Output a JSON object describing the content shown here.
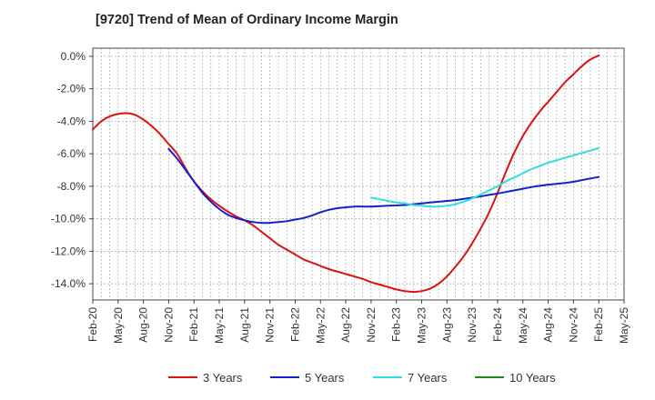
{
  "chart_data": {
    "type": "line",
    "title": "[9720]  Trend of Mean of Ordinary Income Margin",
    "xlabel": "",
    "ylabel": "",
    "ylim": [
      -15.0,
      0.5
    ],
    "y_ticks": [
      0.0,
      -2.0,
      -4.0,
      -6.0,
      -8.0,
      -10.0,
      -12.0,
      -14.0
    ],
    "y_tick_labels": [
      "0.0%",
      "-2.0%",
      "-4.0%",
      "-6.0%",
      "-8.0%",
      "-10.0%",
      "-12.0%",
      "-14.0%"
    ],
    "x_tick_labels": [
      "Feb-20",
      "May-20",
      "Aug-20",
      "Nov-20",
      "Feb-21",
      "May-21",
      "Aug-21",
      "Nov-21",
      "Feb-22",
      "May-22",
      "Aug-22",
      "Nov-22",
      "Feb-23",
      "May-23",
      "Aug-23",
      "Nov-23",
      "Feb-24",
      "May-24",
      "Aug-24",
      "Nov-24",
      "Feb-25",
      "May-25"
    ],
    "grid": true,
    "legend_position": "bottom",
    "series": [
      {
        "name": "3 Years",
        "color": "#dd1111",
        "x": [
          "Feb-20",
          "Mar-20",
          "Apr-20",
          "May-20",
          "Jun-20",
          "Jul-20",
          "Aug-20",
          "Sep-20",
          "Oct-20",
          "Nov-20",
          "Dec-20",
          "Jan-21",
          "Feb-21",
          "Mar-21",
          "Apr-21",
          "May-21",
          "Jun-21",
          "Jul-21",
          "Aug-21",
          "Sep-21",
          "Oct-21",
          "Nov-21",
          "Dec-21",
          "Jan-22",
          "Feb-22",
          "Mar-22",
          "Apr-22",
          "May-22",
          "Jun-22",
          "Jul-22",
          "Aug-22",
          "Sep-22",
          "Oct-22",
          "Nov-22",
          "Dec-22",
          "Jan-23",
          "Feb-23",
          "Mar-23",
          "Apr-23",
          "May-23",
          "Jun-23",
          "Jul-23",
          "Aug-23",
          "Sep-23",
          "Oct-23",
          "Nov-23",
          "Dec-23",
          "Jan-24",
          "Feb-24",
          "Mar-24",
          "Apr-24",
          "May-24",
          "Jun-24",
          "Jul-24",
          "Aug-24",
          "Sep-24",
          "Oct-24",
          "Nov-24",
          "Dec-24",
          "Jan-25",
          "Feb-25"
        ],
        "values": [
          -4.5,
          -4.0,
          -3.7,
          -3.55,
          -3.5,
          -3.6,
          -3.9,
          -4.3,
          -4.8,
          -5.4,
          -6.0,
          -6.9,
          -7.7,
          -8.3,
          -8.8,
          -9.2,
          -9.55,
          -9.85,
          -10.1,
          -10.4,
          -10.8,
          -11.2,
          -11.6,
          -11.9,
          -12.2,
          -12.5,
          -12.7,
          -12.9,
          -13.1,
          -13.25,
          -13.4,
          -13.55,
          -13.7,
          -13.9,
          -14.05,
          -14.2,
          -14.35,
          -14.45,
          -14.5,
          -14.45,
          -14.3,
          -14.0,
          -13.55,
          -12.95,
          -12.3,
          -11.5,
          -10.6,
          -9.6,
          -8.4,
          -7.1,
          -5.9,
          -4.9,
          -4.1,
          -3.4,
          -2.8,
          -2.2,
          -1.6,
          -1.1,
          -0.6,
          -0.2,
          0.05
        ]
      },
      {
        "name": "5 Years",
        "color": "#1122cc",
        "x": [
          "Nov-20",
          "Dec-20",
          "Jan-21",
          "Feb-21",
          "Mar-21",
          "Apr-21",
          "May-21",
          "Jun-21",
          "Jul-21",
          "Aug-21",
          "Sep-21",
          "Oct-21",
          "Nov-21",
          "Dec-21",
          "Jan-22",
          "Feb-22",
          "Mar-22",
          "Apr-22",
          "May-22",
          "Jun-22",
          "Jul-22",
          "Aug-22",
          "Sep-22",
          "Oct-22",
          "Nov-22",
          "Dec-22",
          "Jan-23",
          "Feb-23",
          "Mar-23",
          "Apr-23",
          "May-23",
          "Jun-23",
          "Jul-23",
          "Aug-23",
          "Sep-23",
          "Oct-23",
          "Nov-23",
          "Dec-23",
          "Jan-24",
          "Feb-24",
          "Mar-24",
          "Apr-24",
          "May-24",
          "Jun-24",
          "Jul-24",
          "Aug-24",
          "Sep-24",
          "Oct-24",
          "Nov-24",
          "Dec-24",
          "Jan-25",
          "Feb-25"
        ],
        "values": [
          -5.7,
          -6.3,
          -7.0,
          -7.7,
          -8.4,
          -8.95,
          -9.4,
          -9.75,
          -9.95,
          -10.1,
          -10.2,
          -10.25,
          -10.25,
          -10.2,
          -10.15,
          -10.05,
          -9.95,
          -9.8,
          -9.6,
          -9.45,
          -9.35,
          -9.3,
          -9.25,
          -9.25,
          -9.25,
          -9.22,
          -9.2,
          -9.18,
          -9.15,
          -9.1,
          -9.05,
          -9.0,
          -8.95,
          -8.9,
          -8.85,
          -8.78,
          -8.7,
          -8.62,
          -8.53,
          -8.45,
          -8.35,
          -8.25,
          -8.15,
          -8.05,
          -7.97,
          -7.9,
          -7.85,
          -7.8,
          -7.72,
          -7.62,
          -7.52,
          -7.43
        ]
      },
      {
        "name": "7 Years",
        "color": "#33dddd",
        "x": [
          "Nov-22",
          "Dec-22",
          "Jan-23",
          "Feb-23",
          "Mar-23",
          "Apr-23",
          "May-23",
          "Jun-23",
          "Jul-23",
          "Aug-23",
          "Sep-23",
          "Oct-23",
          "Nov-23",
          "Dec-23",
          "Jan-24",
          "Feb-24",
          "Mar-24",
          "Apr-24",
          "May-24",
          "Jun-24",
          "Jul-24",
          "Aug-24",
          "Sep-24",
          "Oct-24",
          "Nov-24",
          "Dec-24",
          "Jan-25",
          "Feb-25"
        ],
        "values": [
          -8.7,
          -8.8,
          -8.9,
          -9.0,
          -9.05,
          -9.15,
          -9.2,
          -9.25,
          -9.25,
          -9.2,
          -9.1,
          -8.95,
          -8.75,
          -8.5,
          -8.25,
          -8.0,
          -7.7,
          -7.45,
          -7.2,
          -6.95,
          -6.75,
          -6.55,
          -6.4,
          -6.25,
          -6.1,
          -5.95,
          -5.8,
          -5.65
        ]
      },
      {
        "name": "10 Years",
        "color": "#228822",
        "x": [],
        "values": []
      }
    ]
  }
}
